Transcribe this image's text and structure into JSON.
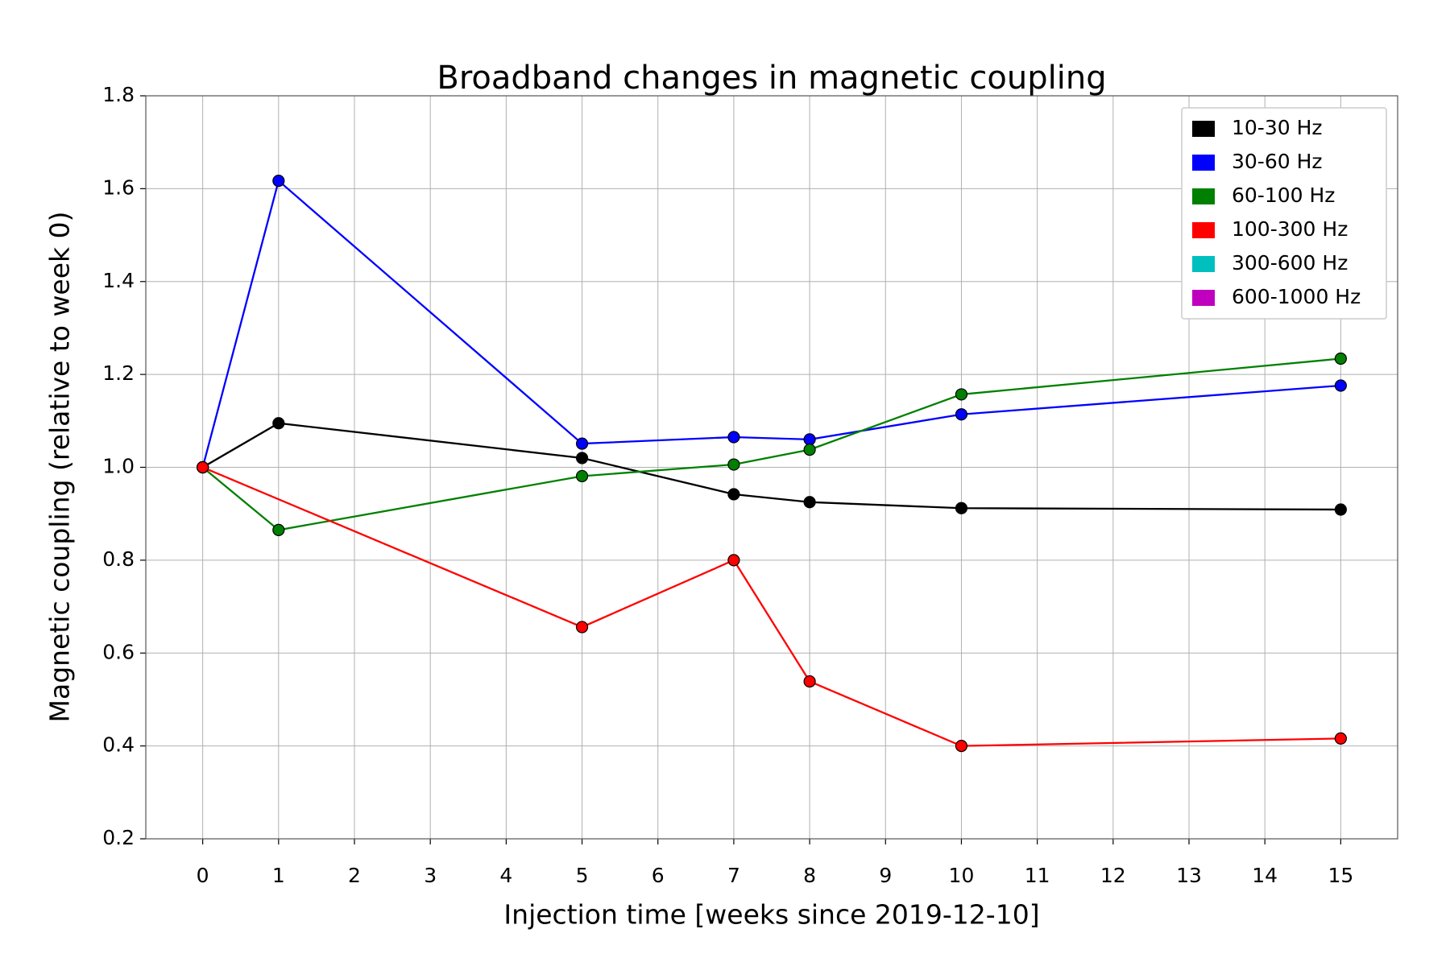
{
  "chart_data": {
    "type": "line",
    "title": "Broadband changes in magnetic coupling",
    "xlabel": "Injection time [weeks since 2019-12-10]",
    "ylabel": "Magnetic coupling (relative to week 0)",
    "xlim": [
      -0.75,
      15.75
    ],
    "xticks": [
      0,
      1,
      2,
      3,
      4,
      5,
      6,
      7,
      8,
      9,
      10,
      11,
      12,
      13,
      14,
      15
    ],
    "ylim": [
      0.2,
      1.8
    ],
    "yticks": [
      0.2,
      0.4,
      0.6,
      0.8,
      {
        "value": 1,
        "label": "1.0"
      },
      1.2,
      1.4,
      1.6,
      1.8
    ],
    "grid": true,
    "legend": "upper right",
    "series": [
      {
        "name": "10-30 Hz",
        "color": "#000000",
        "x": [
          0,
          1,
          5,
          7,
          8,
          10,
          15
        ],
        "values": [
          1.0,
          1.095,
          1.02,
          0.942,
          0.925,
          0.912,
          0.909
        ]
      },
      {
        "name": "30-60 Hz",
        "color": "#0000ff",
        "x": [
          0,
          1,
          5,
          7,
          8,
          10,
          15
        ],
        "values": [
          1.0,
          1.617,
          1.051,
          1.065,
          1.06,
          1.114,
          1.176
        ]
      },
      {
        "name": "60-100 Hz",
        "color": "#008000",
        "x": [
          0,
          1,
          5,
          7,
          8,
          10,
          15
        ],
        "values": [
          1.0,
          0.865,
          0.981,
          1.006,
          1.038,
          1.157,
          1.234
        ]
      },
      {
        "name": "100-300 Hz",
        "color": "#ff0000",
        "x": [
          0,
          5,
          7,
          8,
          10,
          15
        ],
        "values": [
          1.0,
          0.656,
          0.8,
          0.539,
          0.4,
          0.416
        ]
      },
      {
        "name": "300-600 Hz",
        "color": "#00bfbf",
        "x": [],
        "values": []
      },
      {
        "name": "600-1000 Hz",
        "color": "#bf00bf",
        "x": [],
        "values": []
      }
    ]
  }
}
